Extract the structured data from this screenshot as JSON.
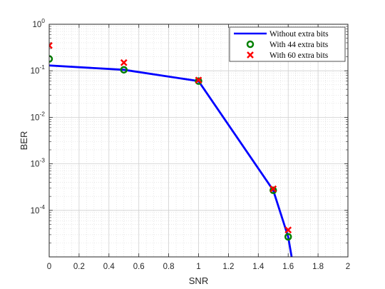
{
  "chart_data": {
    "type": "line",
    "xlabel": "SNR",
    "ylabel": "BER",
    "xlim": [
      0,
      2
    ],
    "ylim": [
      1e-05,
      1
    ],
    "yscale": "log",
    "grid": "major and minor",
    "legend_position": "top-right",
    "xticks": [
      "0",
      "0.2",
      "0.4",
      "0.6",
      "0.8",
      "1",
      "1.2",
      "1.4",
      "1.6",
      "1.8",
      "2"
    ],
    "yticks": [
      {
        "base": "10",
        "exp": "0"
      },
      {
        "base": "10",
        "exp": "-1"
      },
      {
        "base": "10",
        "exp": "-2"
      },
      {
        "base": "10",
        "exp": "-3"
      },
      {
        "base": "10",
        "exp": "-4"
      }
    ],
    "series": [
      {
        "name": "Without extra bits",
        "kind": "line",
        "color": "#0000ff",
        "x": [
          0,
          0.5,
          1.0,
          1.5,
          1.6,
          1.65
        ],
        "y": [
          0.13,
          0.105,
          0.06,
          0.00027,
          2.7e-05,
          3.16e-06
        ]
      },
      {
        "name": "With 44 extra bits",
        "kind": "marker-circle",
        "color": "#008000",
        "x": [
          0,
          0.5,
          1.0,
          1.5,
          1.6
        ],
        "y": [
          0.18,
          0.105,
          0.06,
          0.00027,
          2.7e-05
        ]
      },
      {
        "name": "With 60 extra bits",
        "kind": "marker-x",
        "color": "#ff0000",
        "x": [
          0,
          0.5,
          1.0,
          1.5,
          1.6
        ],
        "y": [
          0.35,
          0.15,
          0.063,
          0.00029,
          3.8e-05
        ]
      }
    ]
  }
}
